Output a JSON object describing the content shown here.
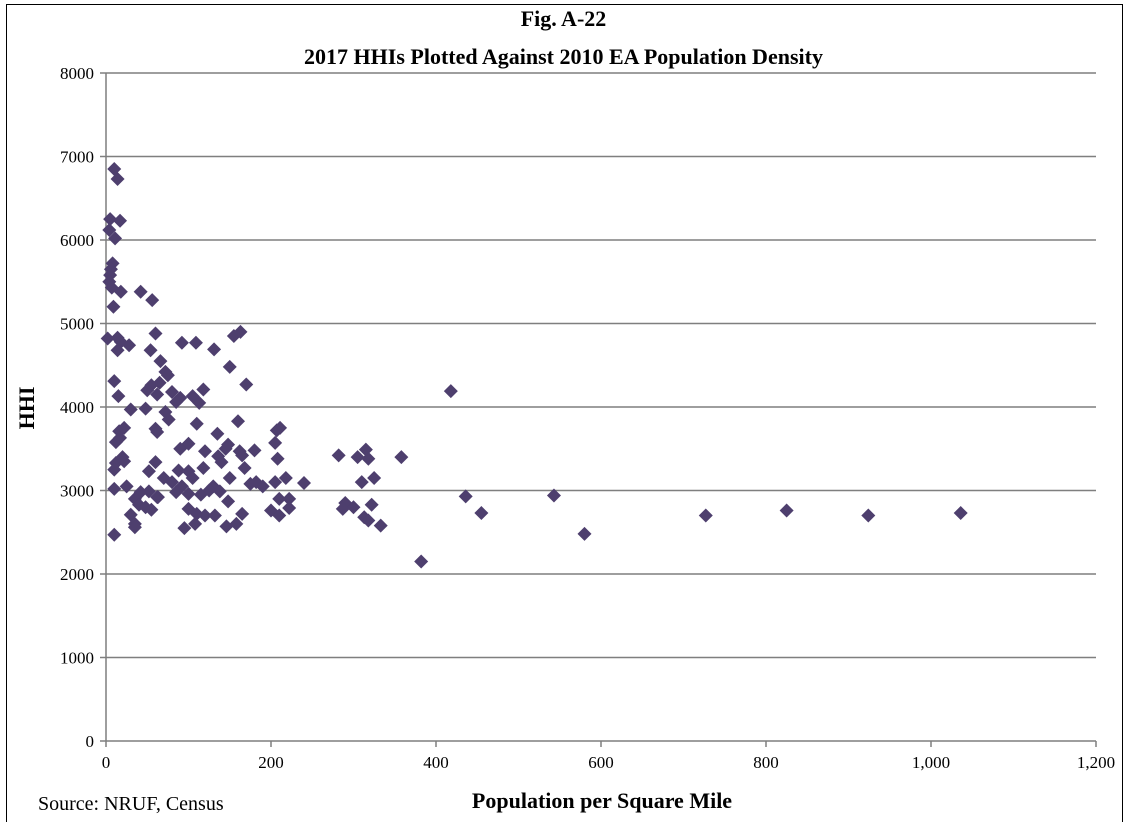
{
  "chart_data": {
    "type": "scatter",
    "title": "Fig. A-22",
    "subtitle": "2017 HHIs Plotted Against 2010 EA Population Density",
    "xlabel": "Population per Square Mile",
    "ylabel": "HHI",
    "xlim": [
      0,
      1200
    ],
    "ylim": [
      0,
      8000
    ],
    "xticks": [
      "0",
      "200",
      "400",
      "600",
      "800",
      "1,000",
      "1,200"
    ],
    "yticks": [
      "0",
      "1000",
      "2000",
      "3000",
      "4000",
      "5000",
      "6000",
      "7000",
      "8000"
    ],
    "grid": "horizontal",
    "marker_color": "#4e3f6e",
    "source": "Source: NRUF, Census",
    "points": [
      [
        10,
        6850
      ],
      [
        14,
        6730
      ],
      [
        5,
        6250
      ],
      [
        17,
        6230
      ],
      [
        4,
        6120
      ],
      [
        11,
        6020
      ],
      [
        8,
        5720
      ],
      [
        6,
        5650
      ],
      [
        5,
        5580
      ],
      [
        4,
        5500
      ],
      [
        7,
        5430
      ],
      [
        18,
        5380
      ],
      [
        42,
        5380
      ],
      [
        56,
        5280
      ],
      [
        9,
        5200
      ],
      [
        2,
        4820
      ],
      [
        14,
        4830
      ],
      [
        18,
        4780
      ],
      [
        28,
        4740
      ],
      [
        14,
        4680
      ],
      [
        60,
        4880
      ],
      [
        54,
        4680
      ],
      [
        66,
        4550
      ],
      [
        92,
        4770
      ],
      [
        109,
        4770
      ],
      [
        131,
        4690
      ],
      [
        155,
        4850
      ],
      [
        163,
        4900
      ],
      [
        72,
        4420
      ],
      [
        150,
        4480
      ],
      [
        10,
        4310
      ],
      [
        55,
        4260
      ],
      [
        50,
        4200
      ],
      [
        65,
        4290
      ],
      [
        62,
        4150
      ],
      [
        75,
        4380
      ],
      [
        80,
        4180
      ],
      [
        90,
        4110
      ],
      [
        85,
        4060
      ],
      [
        105,
        4130
      ],
      [
        118,
        4210
      ],
      [
        113,
        4050
      ],
      [
        170,
        4270
      ],
      [
        418,
        4190
      ],
      [
        15,
        4130
      ],
      [
        30,
        3970
      ],
      [
        48,
        3980
      ],
      [
        72,
        3940
      ],
      [
        76,
        3850
      ],
      [
        60,
        3740
      ],
      [
        62,
        3700
      ],
      [
        110,
        3800
      ],
      [
        135,
        3680
      ],
      [
        160,
        3830
      ],
      [
        16,
        3710
      ],
      [
        22,
        3750
      ],
      [
        12,
        3580
      ],
      [
        17,
        3630
      ],
      [
        207,
        3720
      ],
      [
        211,
        3750
      ],
      [
        90,
        3500
      ],
      [
        100,
        3560
      ],
      [
        120,
        3470
      ],
      [
        136,
        3410
      ],
      [
        145,
        3500
      ],
      [
        148,
        3550
      ],
      [
        162,
        3470
      ],
      [
        165,
        3420
      ],
      [
        180,
        3480
      ],
      [
        205,
        3570
      ],
      [
        282,
        3420
      ],
      [
        305,
        3400
      ],
      [
        315,
        3490
      ],
      [
        358,
        3400
      ],
      [
        12,
        3330
      ],
      [
        20,
        3400
      ],
      [
        22,
        3350
      ],
      [
        10,
        3250
      ],
      [
        52,
        3230
      ],
      [
        60,
        3340
      ],
      [
        88,
        3240
      ],
      [
        100,
        3230
      ],
      [
        118,
        3270
      ],
      [
        140,
        3340
      ],
      [
        168,
        3270
      ],
      [
        208,
        3380
      ],
      [
        318,
        3380
      ],
      [
        70,
        3150
      ],
      [
        80,
        3100
      ],
      [
        92,
        3050
      ],
      [
        105,
        3150
      ],
      [
        130,
        3050
      ],
      [
        150,
        3150
      ],
      [
        175,
        3080
      ],
      [
        182,
        3100
      ],
      [
        190,
        3050
      ],
      [
        205,
        3100
      ],
      [
        218,
        3150
      ],
      [
        240,
        3090
      ],
      [
        310,
        3100
      ],
      [
        325,
        3150
      ],
      [
        10,
        3020
      ],
      [
        25,
        3050
      ],
      [
        42,
        2980
      ],
      [
        52,
        2990
      ],
      [
        63,
        2920
      ],
      [
        85,
        2980
      ],
      [
        100,
        2960
      ],
      [
        115,
        2950
      ],
      [
        125,
        3000
      ],
      [
        138,
        2990
      ],
      [
        148,
        2870
      ],
      [
        210,
        2900
      ],
      [
        222,
        2900
      ],
      [
        290,
        2850
      ],
      [
        300,
        2800
      ],
      [
        436,
        2930
      ],
      [
        543,
        2940
      ],
      [
        35,
        2900
      ],
      [
        40,
        2830
      ],
      [
        48,
        2800
      ],
      [
        62,
        2920
      ],
      [
        100,
        2780
      ],
      [
        110,
        2720
      ],
      [
        120,
        2700
      ],
      [
        132,
        2700
      ],
      [
        146,
        2570
      ],
      [
        158,
        2600
      ],
      [
        165,
        2720
      ],
      [
        200,
        2760
      ],
      [
        210,
        2700
      ],
      [
        222,
        2790
      ],
      [
        287,
        2780
      ],
      [
        313,
        2680
      ],
      [
        322,
        2830
      ],
      [
        455,
        2730
      ],
      [
        727,
        2700
      ],
      [
        825,
        2760
      ],
      [
        924,
        2700
      ],
      [
        1036,
        2730
      ],
      [
        30,
        2710
      ],
      [
        35,
        2600
      ],
      [
        35,
        2560
      ],
      [
        55,
        2770
      ],
      [
        95,
        2550
      ],
      [
        108,
        2600
      ],
      [
        318,
        2640
      ],
      [
        333,
        2580
      ],
      [
        10,
        2470
      ],
      [
        580,
        2480
      ],
      [
        382,
        2150
      ]
    ]
  }
}
